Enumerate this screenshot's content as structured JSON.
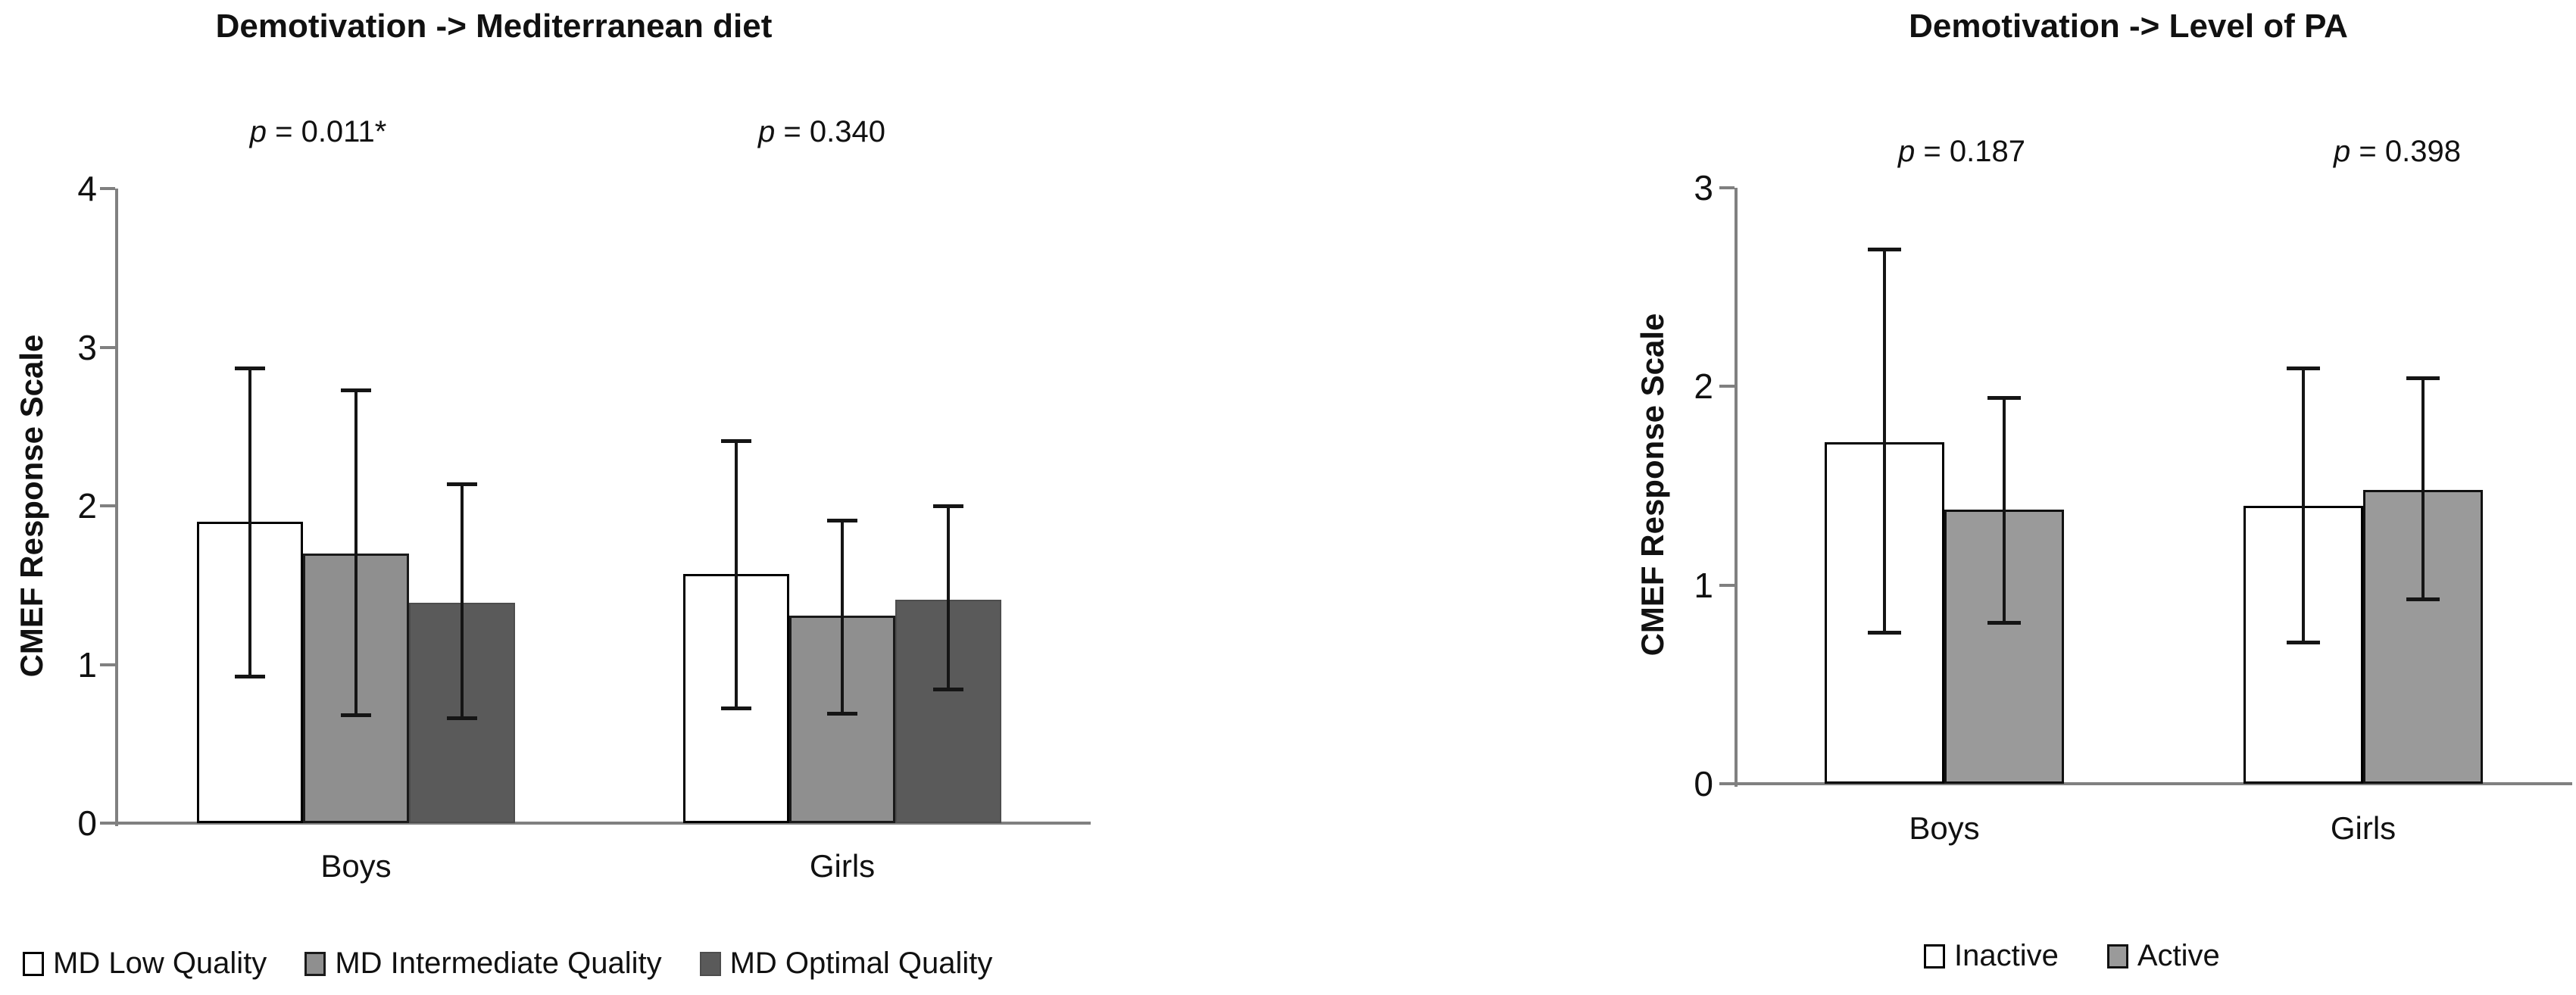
{
  "chart_data": [
    {
      "type": "bar",
      "title": "Demotivation -> Mediterranean diet",
      "ylabel": "CMEF Response Scale",
      "xlabel": "",
      "ylim": [
        0,
        4
      ],
      "yticks": [
        0,
        1,
        2,
        3,
        4
      ],
      "grid": false,
      "legend_position": "bottom",
      "categories": [
        "Boys",
        "Girls"
      ],
      "p_annotations": [
        {
          "prefix": "p",
          "text": " = 0.011*"
        },
        {
          "prefix": "p",
          "text": " = 0.340"
        }
      ],
      "series": [
        {
          "name": "MD Low Quality",
          "fill": "#ffffff",
          "border": "#000000",
          "border_px": 3,
          "values": [
            1.9,
            1.57
          ],
          "err_low": [
            0.91,
            0.71
          ],
          "err_high": [
            2.88,
            2.42
          ]
        },
        {
          "name": "MD Intermediate Quality",
          "fill": "#8f8f8f",
          "border": "#1a1a1a",
          "border_px": 3,
          "values": [
            1.7,
            1.31
          ],
          "err_low": [
            0.67,
            0.68
          ],
          "err_high": [
            2.74,
            1.92
          ]
        },
        {
          "name": "MD Optimal Quality",
          "fill": "#5a5a5a",
          "border": "#4d4d4d",
          "border_px": 2,
          "values": [
            1.39,
            1.41
          ],
          "err_low": [
            0.65,
            0.83
          ],
          "err_high": [
            2.15,
            2.01
          ]
        }
      ],
      "axis_color": "#808080",
      "error_bar_color": "#151515"
    },
    {
      "type": "bar",
      "title": "Demotivation -> Level of PA",
      "ylabel": "CMEF Response Scale",
      "xlabel": "",
      "ylim": [
        0,
        3
      ],
      "yticks": [
        0,
        1,
        2,
        3
      ],
      "grid": false,
      "legend_position": "bottom",
      "categories": [
        "Boys",
        "Girls"
      ],
      "p_annotations": [
        {
          "prefix": "p",
          "text": " = 0.187"
        },
        {
          "prefix": "p",
          "text": " = 0.398"
        }
      ],
      "series": [
        {
          "name": "Inactive",
          "fill": "#ffffff",
          "border": "#000000",
          "border_px": 3,
          "values": [
            1.72,
            1.4
          ],
          "err_low": [
            0.75,
            0.7
          ],
          "err_high": [
            2.7,
            2.1
          ]
        },
        {
          "name": "Active",
          "fill": "#9a9a9a",
          "border": "#111111",
          "border_px": 3,
          "values": [
            1.38,
            1.48
          ],
          "err_low": [
            0.8,
            0.92
          ],
          "err_high": [
            1.95,
            2.05
          ]
        }
      ],
      "axis_color": "#808080",
      "error_bar_color": "#151515"
    }
  ]
}
